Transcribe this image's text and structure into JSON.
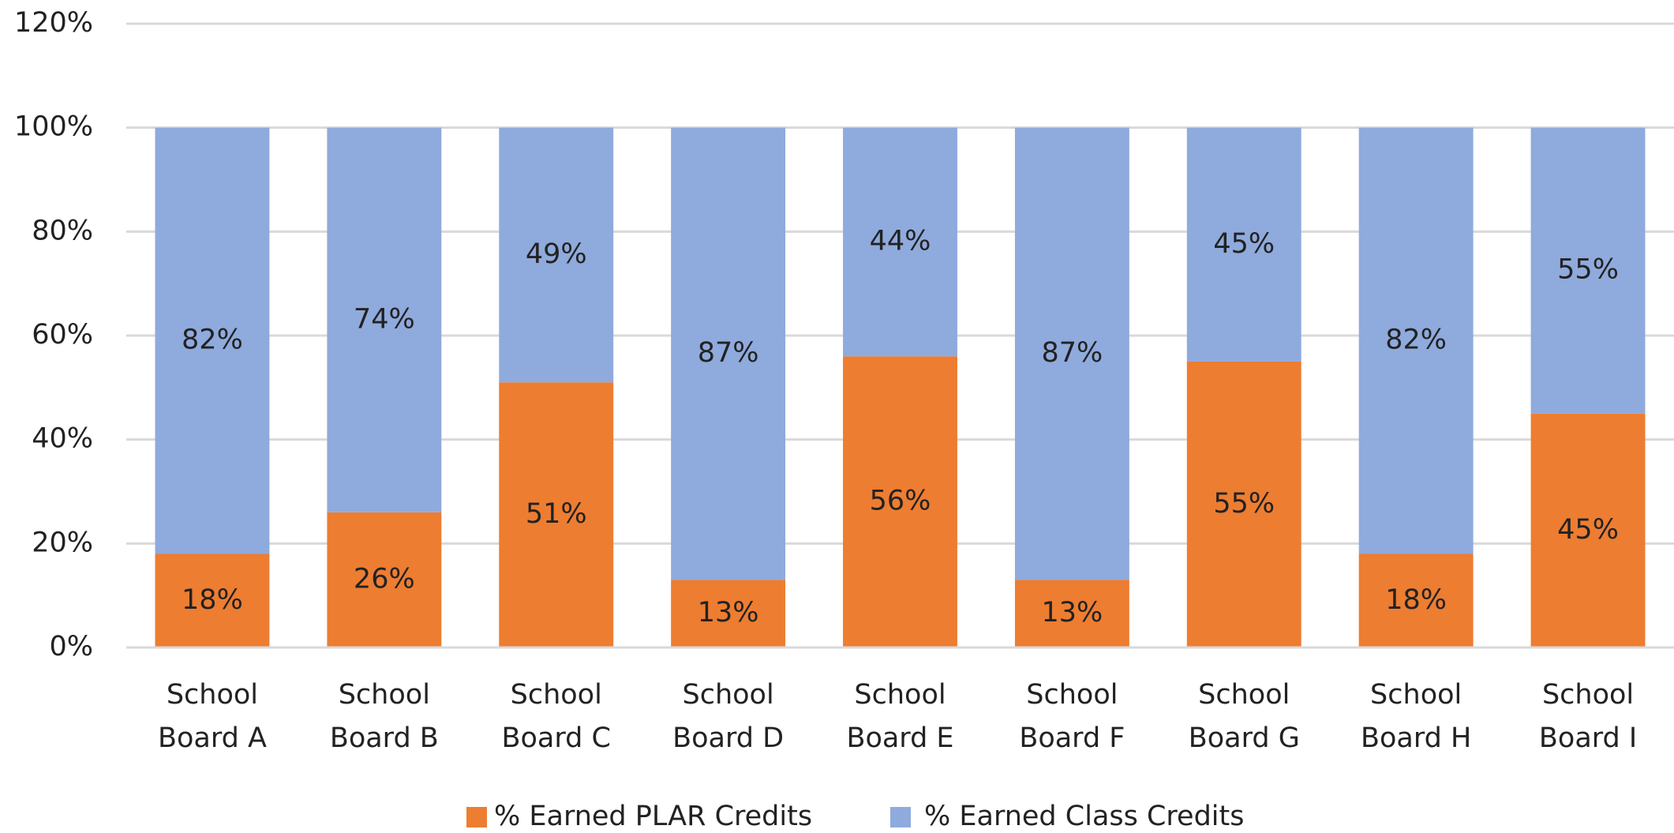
{
  "chart_data": {
    "type": "stacked_bar",
    "categories": [
      "School Board A",
      "School Board B",
      "School Board C",
      "School Board D",
      "School Board E",
      "School Board F",
      "School Board G",
      "School Board H",
      "School Board I"
    ],
    "series": [
      {
        "name": "% Earned PLAR Credits",
        "color": "#ED7D31",
        "values": [
          18,
          26,
          51,
          13,
          56,
          13,
          55,
          18,
          45
        ],
        "value_labels": [
          "18%",
          "26%",
          "51%",
          "13%",
          "56%",
          "13%",
          "55%",
          "18%",
          "45%"
        ]
      },
      {
        "name": "% Earned Class Credits",
        "color": "#8FAADC",
        "values": [
          82,
          74,
          49,
          87,
          44,
          87,
          45,
          82,
          55
        ],
        "value_labels": [
          "82%",
          "74%",
          "49%",
          "87%",
          "44%",
          "87%",
          "45%",
          "82%",
          "55%"
        ]
      }
    ],
    "ylim": [
      0,
      120
    ],
    "yticks": [
      {
        "value": 0,
        "label": "0%"
      },
      {
        "value": 20,
        "label": "20%"
      },
      {
        "value": 40,
        "label": "40%"
      },
      {
        "value": 60,
        "label": "60%"
      },
      {
        "value": 80,
        "label": "80%"
      },
      {
        "value": 100,
        "label": "100%"
      },
      {
        "value": 120,
        "label": "120%"
      }
    ],
    "grid": true,
    "legend": "bottom"
  }
}
